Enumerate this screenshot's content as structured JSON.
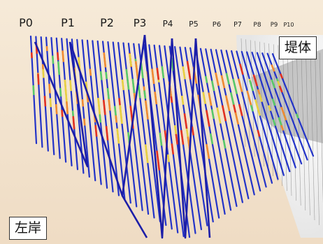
{
  "section_labels": [
    "P0",
    "P1",
    "P2",
    "P3",
    "P4",
    "P5",
    "P6",
    "P7",
    "P8",
    "P9",
    "P10"
  ],
  "area_labels": {
    "dam_body": "堤体",
    "left_bank": "左岸"
  },
  "colors": {
    "background": "#f1e2cc",
    "borehole_line": "#2233c8",
    "diagonal_line": "#1c1ea8",
    "dam_mesh": "#7d7d7d",
    "zone_red": "#e23020",
    "zone_yellow": "#e8d040",
    "zone_green": "#58c868",
    "zone_orange": "#f08a30"
  }
}
